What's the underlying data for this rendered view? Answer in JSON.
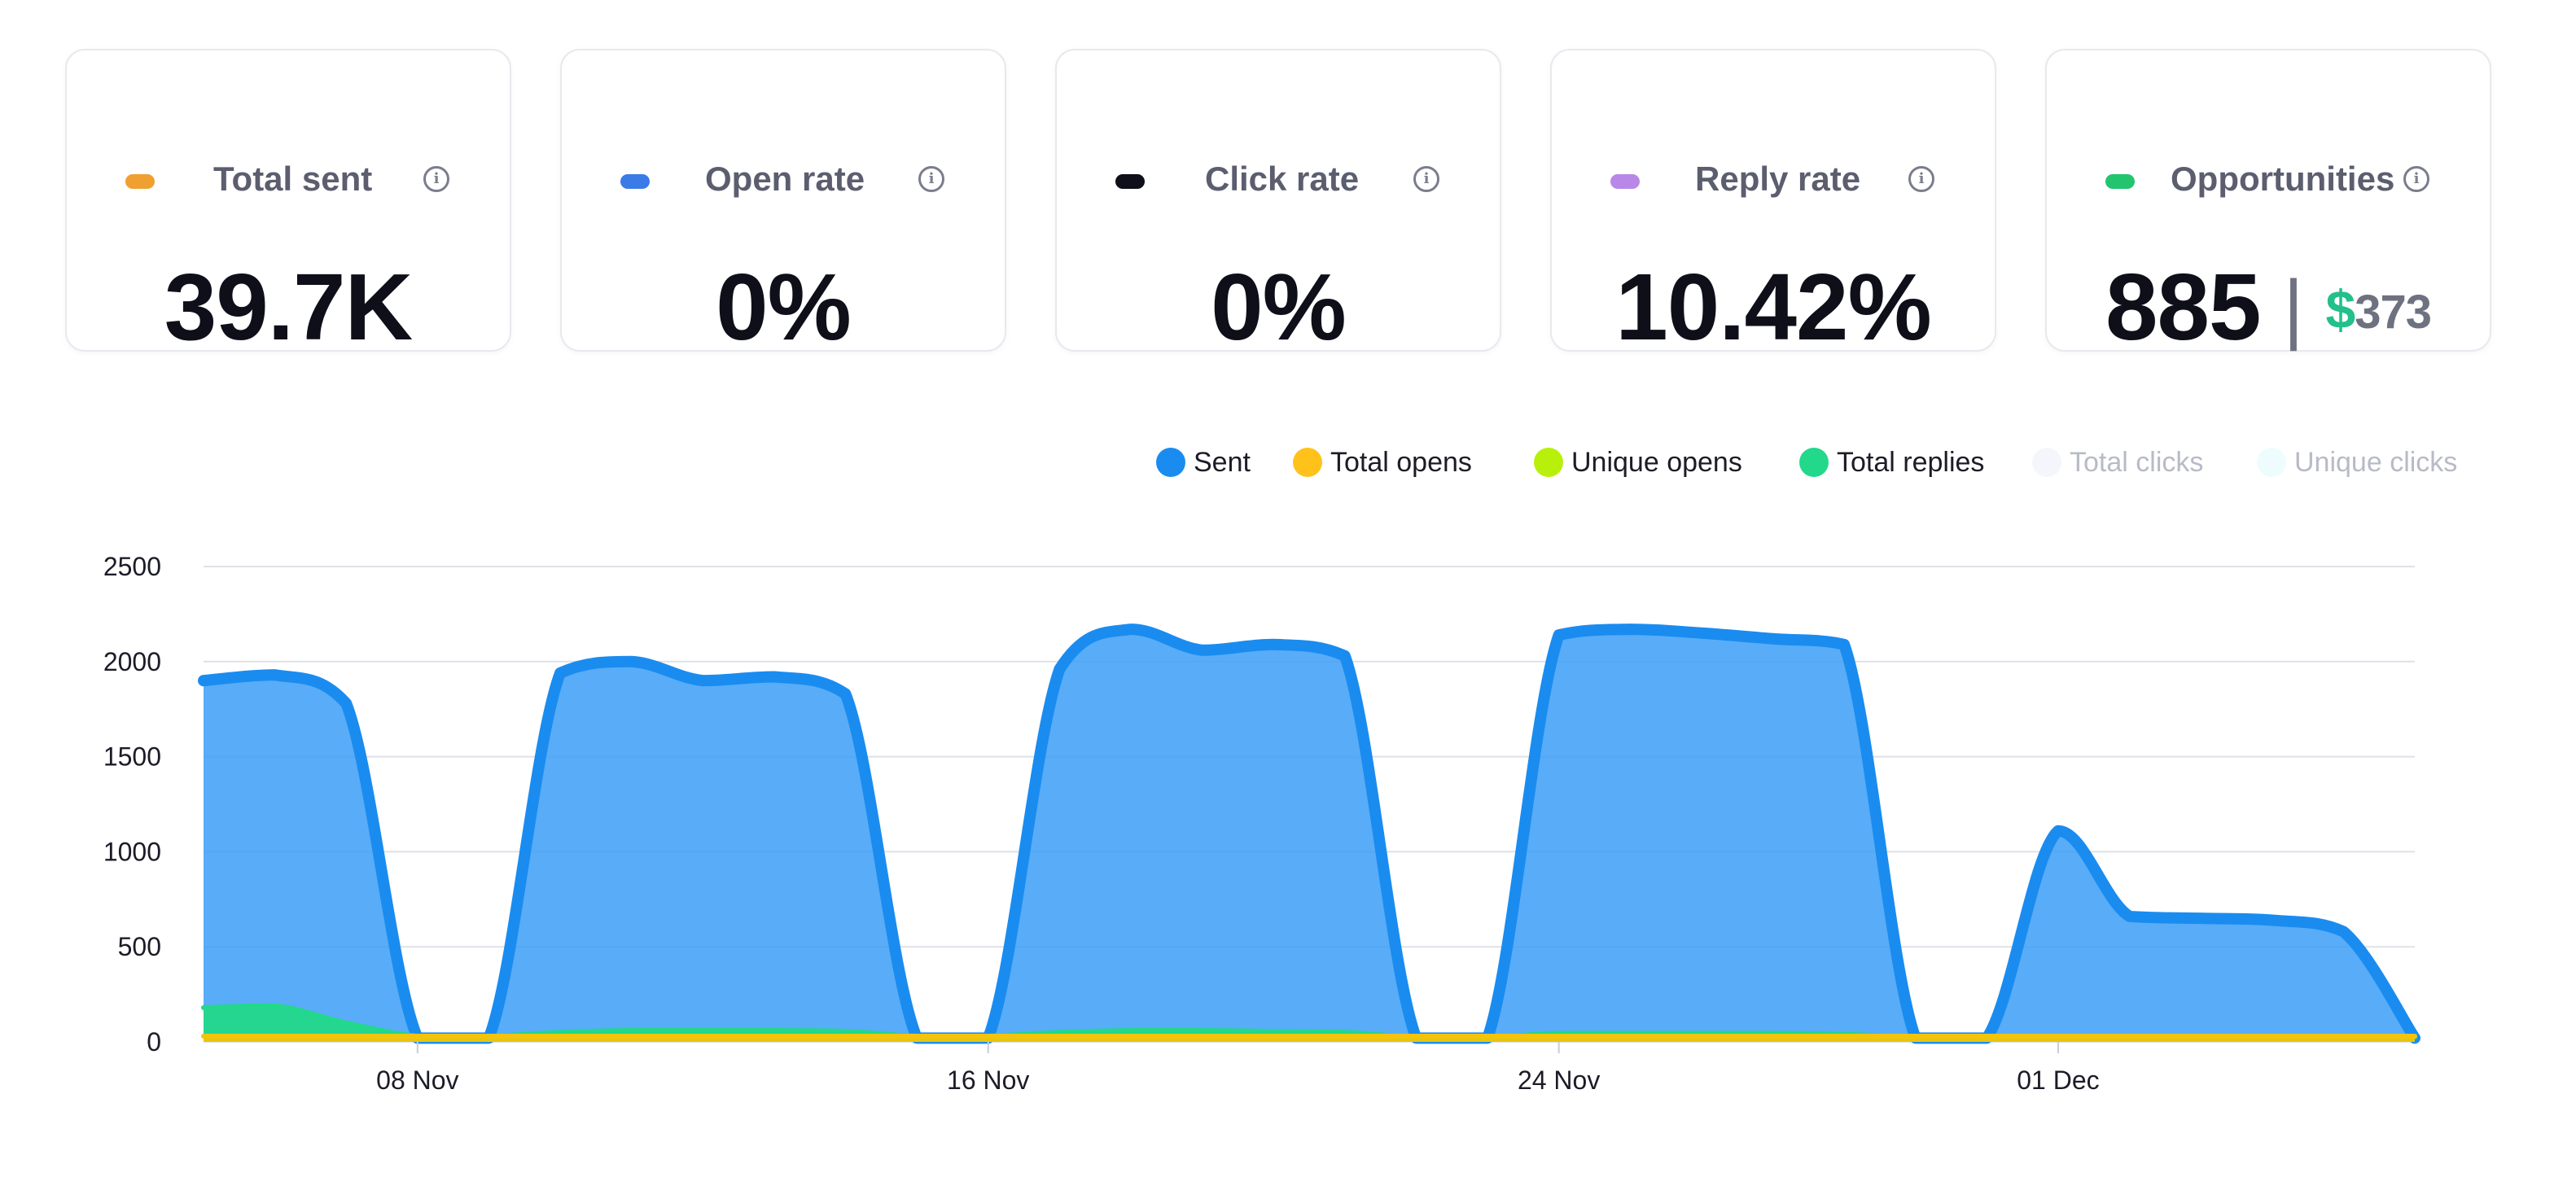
{
  "metrics": [
    {
      "label": "Total sent",
      "value": "39.7K",
      "color": "#f0a030",
      "info_icon": "info-icon"
    },
    {
      "label": "Open rate",
      "value": "0%",
      "color": "#3b7be8",
      "info_icon": "info-icon"
    },
    {
      "label": "Click rate",
      "value": "0%",
      "color": "#0f0f1a",
      "info_icon": "info-icon"
    },
    {
      "label": "Reply rate",
      "value": "10.42%",
      "color": "#b987e8",
      "info_icon": "info-icon"
    },
    {
      "label": "Opportunities",
      "value": "885",
      "separator": "|",
      "currency": "$",
      "amount": "373",
      "color": "#22c56e",
      "info_icon": "info-icon"
    }
  ],
  "legend": [
    {
      "label": "Sent",
      "color": "#1a8cf0",
      "faded": false
    },
    {
      "label": "Total opens",
      "color": "#ffc21a",
      "faded": false
    },
    {
      "label": "Unique opens",
      "color": "#b8f00c",
      "faded": false
    },
    {
      "label": "Total replies",
      "color": "#22d88a",
      "faded": false
    },
    {
      "label": "Total clicks",
      "color": "#f4f6fb",
      "faded": true
    },
    {
      "label": "Unique clicks",
      "color": "#eefcfd",
      "faded": true
    }
  ],
  "chart_data": {
    "type": "area",
    "y_ticks": [
      "0",
      "500",
      "1000",
      "1500",
      "2000",
      "2500"
    ],
    "ylim": [
      0,
      2500
    ],
    "x_tick_labels": [
      "08 Nov",
      "16 Nov",
      "24 Nov",
      "01 Dec"
    ],
    "x_tick_dates": [
      "2024-11-08",
      "2024-11-16",
      "2024-11-24",
      "2024-12-01"
    ],
    "x_range": [
      "2024-11-05",
      "2024-12-06"
    ],
    "grid": true,
    "legend_position": "top-right",
    "series": [
      {
        "name": "Sent",
        "color": "#1a8cf0",
        "fill": "#3c9df6",
        "points": [
          [
            "2024-11-05",
            1900
          ],
          [
            "2024-11-06",
            1930
          ],
          [
            "2024-11-07",
            1780
          ],
          [
            "2024-11-08",
            20
          ],
          [
            "2024-11-09",
            20
          ],
          [
            "2024-11-10",
            1940
          ],
          [
            "2024-11-11",
            2000
          ],
          [
            "2024-11-12",
            1900
          ],
          [
            "2024-11-13",
            1920
          ],
          [
            "2024-11-14",
            1830
          ],
          [
            "2024-11-15",
            20
          ],
          [
            "2024-11-16",
            20
          ],
          [
            "2024-11-17",
            1960
          ],
          [
            "2024-11-18",
            2170
          ],
          [
            "2024-11-19",
            2060
          ],
          [
            "2024-11-20",
            2090
          ],
          [
            "2024-11-21",
            2030
          ],
          [
            "2024-11-22",
            20
          ],
          [
            "2024-11-23",
            20
          ],
          [
            "2024-11-24",
            2140
          ],
          [
            "2024-11-25",
            2170
          ],
          [
            "2024-11-26",
            2150
          ],
          [
            "2024-11-27",
            2120
          ],
          [
            "2024-11-28",
            2090
          ],
          [
            "2024-11-29",
            20
          ],
          [
            "2024-11-30",
            20
          ],
          [
            "2024-12-01",
            1110
          ],
          [
            "2024-12-02",
            660
          ],
          [
            "2024-12-03",
            650
          ],
          [
            "2024-12-04",
            640
          ],
          [
            "2024-12-05",
            580
          ],
          [
            "2024-12-06",
            20
          ]
        ]
      },
      {
        "name": "Total replies",
        "color": "#22d88a",
        "fill": "#22d88a",
        "points": [
          [
            "2024-11-05",
            180
          ],
          [
            "2024-11-06",
            190
          ],
          [
            "2024-11-07",
            100
          ],
          [
            "2024-11-08",
            30
          ],
          [
            "2024-11-09",
            30
          ],
          [
            "2024-11-10",
            50
          ],
          [
            "2024-11-11",
            60
          ],
          [
            "2024-11-12",
            60
          ],
          [
            "2024-11-13",
            60
          ],
          [
            "2024-11-14",
            55
          ],
          [
            "2024-11-15",
            30
          ],
          [
            "2024-11-16",
            30
          ],
          [
            "2024-11-17",
            50
          ],
          [
            "2024-11-18",
            60
          ],
          [
            "2024-11-19",
            60
          ],
          [
            "2024-11-20",
            55
          ],
          [
            "2024-11-21",
            50
          ],
          [
            "2024-11-22",
            25
          ],
          [
            "2024-11-23",
            25
          ],
          [
            "2024-11-24",
            45
          ],
          [
            "2024-11-25",
            45
          ],
          [
            "2024-11-26",
            45
          ],
          [
            "2024-11-27",
            45
          ],
          [
            "2024-11-28",
            40
          ],
          [
            "2024-11-29",
            25
          ],
          [
            "2024-11-30",
            25
          ],
          [
            "2024-12-01",
            30
          ],
          [
            "2024-12-02",
            30
          ],
          [
            "2024-12-03",
            30
          ],
          [
            "2024-12-04",
            30
          ],
          [
            "2024-12-05",
            30
          ],
          [
            "2024-12-06",
            25
          ]
        ]
      },
      {
        "name": "Total opens",
        "color": "#f2c40c",
        "fill": "#f2c40c",
        "points": [
          [
            "2024-11-05",
            30
          ],
          [
            "2024-11-06",
            30
          ],
          [
            "2024-11-07",
            30
          ],
          [
            "2024-11-08",
            30
          ],
          [
            "2024-11-09",
            30
          ],
          [
            "2024-11-10",
            30
          ],
          [
            "2024-11-11",
            30
          ],
          [
            "2024-11-12",
            30
          ],
          [
            "2024-11-13",
            30
          ],
          [
            "2024-11-14",
            30
          ],
          [
            "2024-11-15",
            30
          ],
          [
            "2024-11-16",
            30
          ],
          [
            "2024-11-17",
            30
          ],
          [
            "2024-11-18",
            30
          ],
          [
            "2024-11-19",
            30
          ],
          [
            "2024-11-20",
            30
          ],
          [
            "2024-11-21",
            30
          ],
          [
            "2024-11-22",
            30
          ],
          [
            "2024-11-23",
            30
          ],
          [
            "2024-11-24",
            30
          ],
          [
            "2024-11-25",
            30
          ],
          [
            "2024-11-26",
            30
          ],
          [
            "2024-11-27",
            30
          ],
          [
            "2024-11-28",
            30
          ],
          [
            "2024-11-29",
            30
          ],
          [
            "2024-11-30",
            30
          ],
          [
            "2024-12-01",
            30
          ],
          [
            "2024-12-02",
            30
          ],
          [
            "2024-12-03",
            30
          ],
          [
            "2024-12-04",
            30
          ],
          [
            "2024-12-05",
            30
          ],
          [
            "2024-12-06",
            30
          ]
        ]
      }
    ]
  }
}
